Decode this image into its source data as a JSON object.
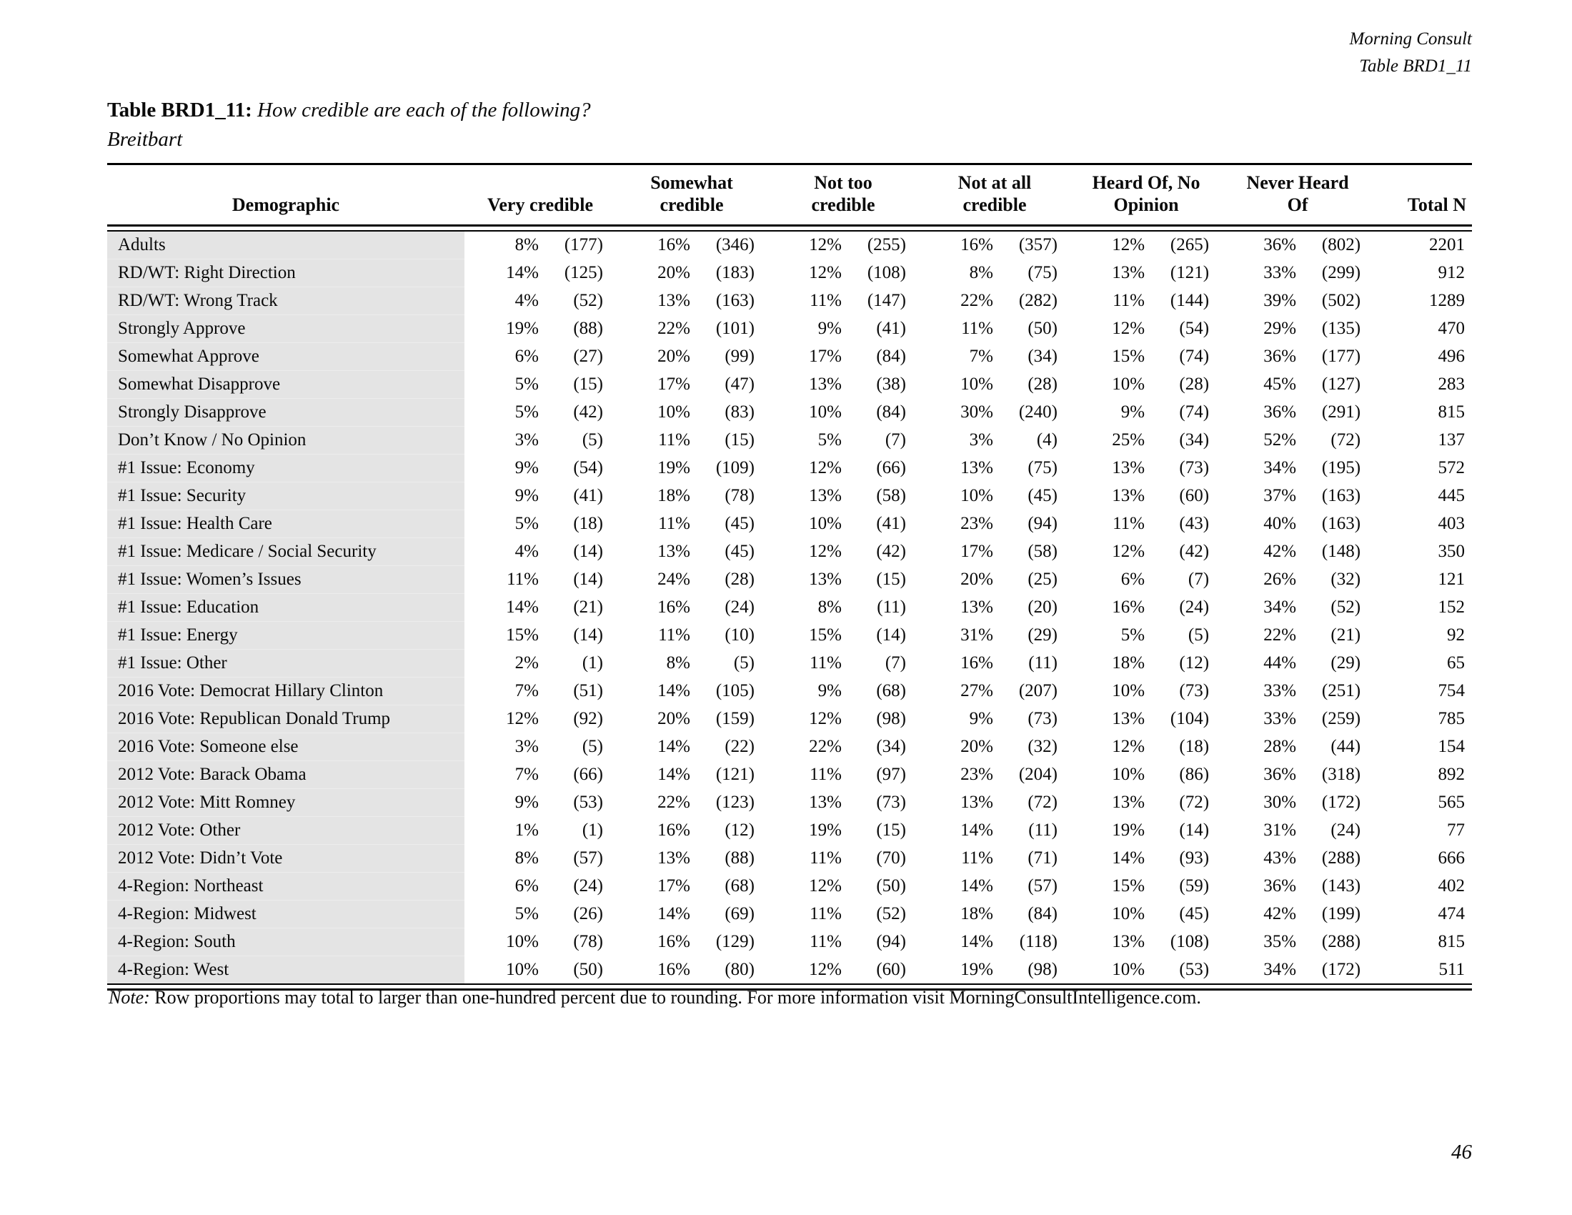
{
  "corner": {
    "brand": "Morning Consult",
    "table_ref": "Table BRD1_11"
  },
  "title": {
    "label": "Table BRD1_11:",
    "question": "How credible are each of the following?",
    "subtitle": "Breitbart"
  },
  "table": {
    "columns": {
      "demographic": "Demographic",
      "groups": [
        "Very credible",
        "Somewhat\ncredible",
        "Not too\ncredible",
        "Not at all\ncredible",
        "Heard Of, No\nOpinion",
        "Never Heard\nOf"
      ],
      "total": "Total N"
    },
    "rows": [
      {
        "demographic": "Adults",
        "cells": [
          [
            "8%",
            "(177)"
          ],
          [
            "16%",
            "(346)"
          ],
          [
            "12%",
            "(255)"
          ],
          [
            "16%",
            "(357)"
          ],
          [
            "12%",
            "(265)"
          ],
          [
            "36%",
            "(802)"
          ]
        ],
        "total": "2201"
      },
      {
        "demographic": "RD/WT: Right Direction",
        "cells": [
          [
            "14%",
            "(125)"
          ],
          [
            "20%",
            "(183)"
          ],
          [
            "12%",
            "(108)"
          ],
          [
            "8%",
            "(75)"
          ],
          [
            "13%",
            "(121)"
          ],
          [
            "33%",
            "(299)"
          ]
        ],
        "total": "912"
      },
      {
        "demographic": "RD/WT: Wrong Track",
        "cells": [
          [
            "4%",
            "(52)"
          ],
          [
            "13%",
            "(163)"
          ],
          [
            "11%",
            "(147)"
          ],
          [
            "22%",
            "(282)"
          ],
          [
            "11%",
            "(144)"
          ],
          [
            "39%",
            "(502)"
          ]
        ],
        "total": "1289"
      },
      {
        "demographic": "Strongly Approve",
        "cells": [
          [
            "19%",
            "(88)"
          ],
          [
            "22%",
            "(101)"
          ],
          [
            "9%",
            "(41)"
          ],
          [
            "11%",
            "(50)"
          ],
          [
            "12%",
            "(54)"
          ],
          [
            "29%",
            "(135)"
          ]
        ],
        "total": "470"
      },
      {
        "demographic": "Somewhat Approve",
        "cells": [
          [
            "6%",
            "(27)"
          ],
          [
            "20%",
            "(99)"
          ],
          [
            "17%",
            "(84)"
          ],
          [
            "7%",
            "(34)"
          ],
          [
            "15%",
            "(74)"
          ],
          [
            "36%",
            "(177)"
          ]
        ],
        "total": "496"
      },
      {
        "demographic": "Somewhat Disapprove",
        "cells": [
          [
            "5%",
            "(15)"
          ],
          [
            "17%",
            "(47)"
          ],
          [
            "13%",
            "(38)"
          ],
          [
            "10%",
            "(28)"
          ],
          [
            "10%",
            "(28)"
          ],
          [
            "45%",
            "(127)"
          ]
        ],
        "total": "283"
      },
      {
        "demographic": "Strongly Disapprove",
        "cells": [
          [
            "5%",
            "(42)"
          ],
          [
            "10%",
            "(83)"
          ],
          [
            "10%",
            "(84)"
          ],
          [
            "30%",
            "(240)"
          ],
          [
            "9%",
            "(74)"
          ],
          [
            "36%",
            "(291)"
          ]
        ],
        "total": "815"
      },
      {
        "demographic": "Don’t Know / No Opinion",
        "cells": [
          [
            "3%",
            "(5)"
          ],
          [
            "11%",
            "(15)"
          ],
          [
            "5%",
            "(7)"
          ],
          [
            "3%",
            "(4)"
          ],
          [
            "25%",
            "(34)"
          ],
          [
            "52%",
            "(72)"
          ]
        ],
        "total": "137"
      },
      {
        "demographic": "#1 Issue: Economy",
        "cells": [
          [
            "9%",
            "(54)"
          ],
          [
            "19%",
            "(109)"
          ],
          [
            "12%",
            "(66)"
          ],
          [
            "13%",
            "(75)"
          ],
          [
            "13%",
            "(73)"
          ],
          [
            "34%",
            "(195)"
          ]
        ],
        "total": "572"
      },
      {
        "demographic": "#1 Issue: Security",
        "cells": [
          [
            "9%",
            "(41)"
          ],
          [
            "18%",
            "(78)"
          ],
          [
            "13%",
            "(58)"
          ],
          [
            "10%",
            "(45)"
          ],
          [
            "13%",
            "(60)"
          ],
          [
            "37%",
            "(163)"
          ]
        ],
        "total": "445"
      },
      {
        "demographic": "#1 Issue: Health Care",
        "cells": [
          [
            "5%",
            "(18)"
          ],
          [
            "11%",
            "(45)"
          ],
          [
            "10%",
            "(41)"
          ],
          [
            "23%",
            "(94)"
          ],
          [
            "11%",
            "(43)"
          ],
          [
            "40%",
            "(163)"
          ]
        ],
        "total": "403"
      },
      {
        "demographic": "#1 Issue: Medicare / Social Security",
        "cells": [
          [
            "4%",
            "(14)"
          ],
          [
            "13%",
            "(45)"
          ],
          [
            "12%",
            "(42)"
          ],
          [
            "17%",
            "(58)"
          ],
          [
            "12%",
            "(42)"
          ],
          [
            "42%",
            "(148)"
          ]
        ],
        "total": "350"
      },
      {
        "demographic": "#1 Issue: Women’s Issues",
        "cells": [
          [
            "11%",
            "(14)"
          ],
          [
            "24%",
            "(28)"
          ],
          [
            "13%",
            "(15)"
          ],
          [
            "20%",
            "(25)"
          ],
          [
            "6%",
            "(7)"
          ],
          [
            "26%",
            "(32)"
          ]
        ],
        "total": "121"
      },
      {
        "demographic": "#1 Issue: Education",
        "cells": [
          [
            "14%",
            "(21)"
          ],
          [
            "16%",
            "(24)"
          ],
          [
            "8%",
            "(11)"
          ],
          [
            "13%",
            "(20)"
          ],
          [
            "16%",
            "(24)"
          ],
          [
            "34%",
            "(52)"
          ]
        ],
        "total": "152"
      },
      {
        "demographic": "#1 Issue: Energy",
        "cells": [
          [
            "15%",
            "(14)"
          ],
          [
            "11%",
            "(10)"
          ],
          [
            "15%",
            "(14)"
          ],
          [
            "31%",
            "(29)"
          ],
          [
            "5%",
            "(5)"
          ],
          [
            "22%",
            "(21)"
          ]
        ],
        "total": "92"
      },
      {
        "demographic": "#1 Issue: Other",
        "cells": [
          [
            "2%",
            "(1)"
          ],
          [
            "8%",
            "(5)"
          ],
          [
            "11%",
            "(7)"
          ],
          [
            "16%",
            "(11)"
          ],
          [
            "18%",
            "(12)"
          ],
          [
            "44%",
            "(29)"
          ]
        ],
        "total": "65"
      },
      {
        "demographic": "2016 Vote: Democrat Hillary Clinton",
        "cells": [
          [
            "7%",
            "(51)"
          ],
          [
            "14%",
            "(105)"
          ],
          [
            "9%",
            "(68)"
          ],
          [
            "27%",
            "(207)"
          ],
          [
            "10%",
            "(73)"
          ],
          [
            "33%",
            "(251)"
          ]
        ],
        "total": "754"
      },
      {
        "demographic": "2016 Vote: Republican Donald Trump",
        "cells": [
          [
            "12%",
            "(92)"
          ],
          [
            "20%",
            "(159)"
          ],
          [
            "12%",
            "(98)"
          ],
          [
            "9%",
            "(73)"
          ],
          [
            "13%",
            "(104)"
          ],
          [
            "33%",
            "(259)"
          ]
        ],
        "total": "785"
      },
      {
        "demographic": "2016 Vote: Someone else",
        "cells": [
          [
            "3%",
            "(5)"
          ],
          [
            "14%",
            "(22)"
          ],
          [
            "22%",
            "(34)"
          ],
          [
            "20%",
            "(32)"
          ],
          [
            "12%",
            "(18)"
          ],
          [
            "28%",
            "(44)"
          ]
        ],
        "total": "154"
      },
      {
        "demographic": "2012 Vote: Barack Obama",
        "cells": [
          [
            "7%",
            "(66)"
          ],
          [
            "14%",
            "(121)"
          ],
          [
            "11%",
            "(97)"
          ],
          [
            "23%",
            "(204)"
          ],
          [
            "10%",
            "(86)"
          ],
          [
            "36%",
            "(318)"
          ]
        ],
        "total": "892"
      },
      {
        "demographic": "2012 Vote: Mitt Romney",
        "cells": [
          [
            "9%",
            "(53)"
          ],
          [
            "22%",
            "(123)"
          ],
          [
            "13%",
            "(73)"
          ],
          [
            "13%",
            "(72)"
          ],
          [
            "13%",
            "(72)"
          ],
          [
            "30%",
            "(172)"
          ]
        ],
        "total": "565"
      },
      {
        "demographic": "2012 Vote: Other",
        "cells": [
          [
            "1%",
            "(1)"
          ],
          [
            "16%",
            "(12)"
          ],
          [
            "19%",
            "(15)"
          ],
          [
            "14%",
            "(11)"
          ],
          [
            "19%",
            "(14)"
          ],
          [
            "31%",
            "(24)"
          ]
        ],
        "total": "77"
      },
      {
        "demographic": "2012 Vote: Didn’t Vote",
        "cells": [
          [
            "8%",
            "(57)"
          ],
          [
            "13%",
            "(88)"
          ],
          [
            "11%",
            "(70)"
          ],
          [
            "11%",
            "(71)"
          ],
          [
            "14%",
            "(93)"
          ],
          [
            "43%",
            "(288)"
          ]
        ],
        "total": "666"
      },
      {
        "demographic": "4-Region: Northeast",
        "cells": [
          [
            "6%",
            "(24)"
          ],
          [
            "17%",
            "(68)"
          ],
          [
            "12%",
            "(50)"
          ],
          [
            "14%",
            "(57)"
          ],
          [
            "15%",
            "(59)"
          ],
          [
            "36%",
            "(143)"
          ]
        ],
        "total": "402"
      },
      {
        "demographic": "4-Region: Midwest",
        "cells": [
          [
            "5%",
            "(26)"
          ],
          [
            "14%",
            "(69)"
          ],
          [
            "11%",
            "(52)"
          ],
          [
            "18%",
            "(84)"
          ],
          [
            "10%",
            "(45)"
          ],
          [
            "42%",
            "(199)"
          ]
        ],
        "total": "474"
      },
      {
        "demographic": "4-Region: South",
        "cells": [
          [
            "10%",
            "(78)"
          ],
          [
            "16%",
            "(129)"
          ],
          [
            "11%",
            "(94)"
          ],
          [
            "14%",
            "(118)"
          ],
          [
            "13%",
            "(108)"
          ],
          [
            "35%",
            "(288)"
          ]
        ],
        "total": "815"
      },
      {
        "demographic": "4-Region: West",
        "cells": [
          [
            "10%",
            "(50)"
          ],
          [
            "16%",
            "(80)"
          ],
          [
            "12%",
            "(60)"
          ],
          [
            "19%",
            "(98)"
          ],
          [
            "10%",
            "(53)"
          ],
          [
            "34%",
            "(172)"
          ]
        ],
        "total": "511"
      }
    ]
  },
  "note": {
    "label": "Note:",
    "text": " Row proportions may total to larger than one-hundred percent due to rounding. For more information visit MorningConsultIntelligence.com."
  },
  "page_number": "46"
}
